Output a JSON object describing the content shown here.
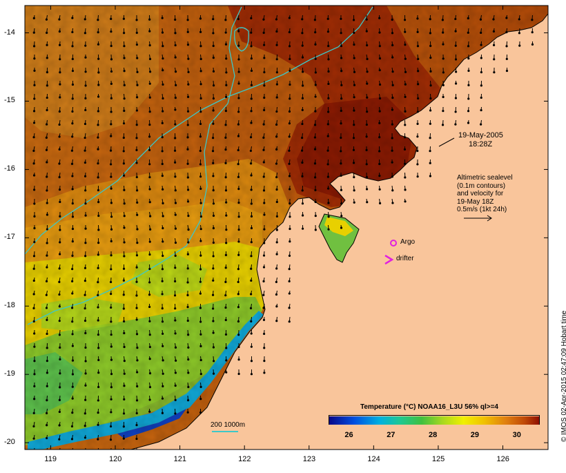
{
  "map": {
    "date": "19-May-2005",
    "time": "18:28Z",
    "altimetry_note": [
      "Altimetric sealevel",
      "(0.1m contours)",
      "and velocity for",
      "19-May 18Z",
      "0.5m/s (1kt 24h)"
    ],
    "argo_label": "Argo",
    "drifter_label": "drifter",
    "scale_label": "200  1000m",
    "credit": "© IMOS 02-Apr-2015 02:47:09 Hobart time",
    "lon_ticks": [
      "119",
      "120",
      "121",
      "122",
      "123",
      "124",
      "125",
      "126"
    ],
    "lat_ticks": [
      "-14",
      "-15",
      "-16",
      "-17",
      "-18",
      "-19",
      "-20"
    ],
    "lon_range": [
      118.6,
      126.7
    ],
    "lat_range": [
      -20.1,
      -13.6
    ],
    "colors": {
      "land": "#f9c59b",
      "isobath": "#3cc8c8",
      "argo": "#e020e0",
      "drifter": "#e020e0"
    }
  },
  "legend": {
    "title": "Temperature (°C) NOAA16_L3U 56% ql>=4",
    "ticks": [
      "26",
      "27",
      "28",
      "29",
      "30"
    ],
    "range": [
      25.5,
      30.5
    ]
  }
}
